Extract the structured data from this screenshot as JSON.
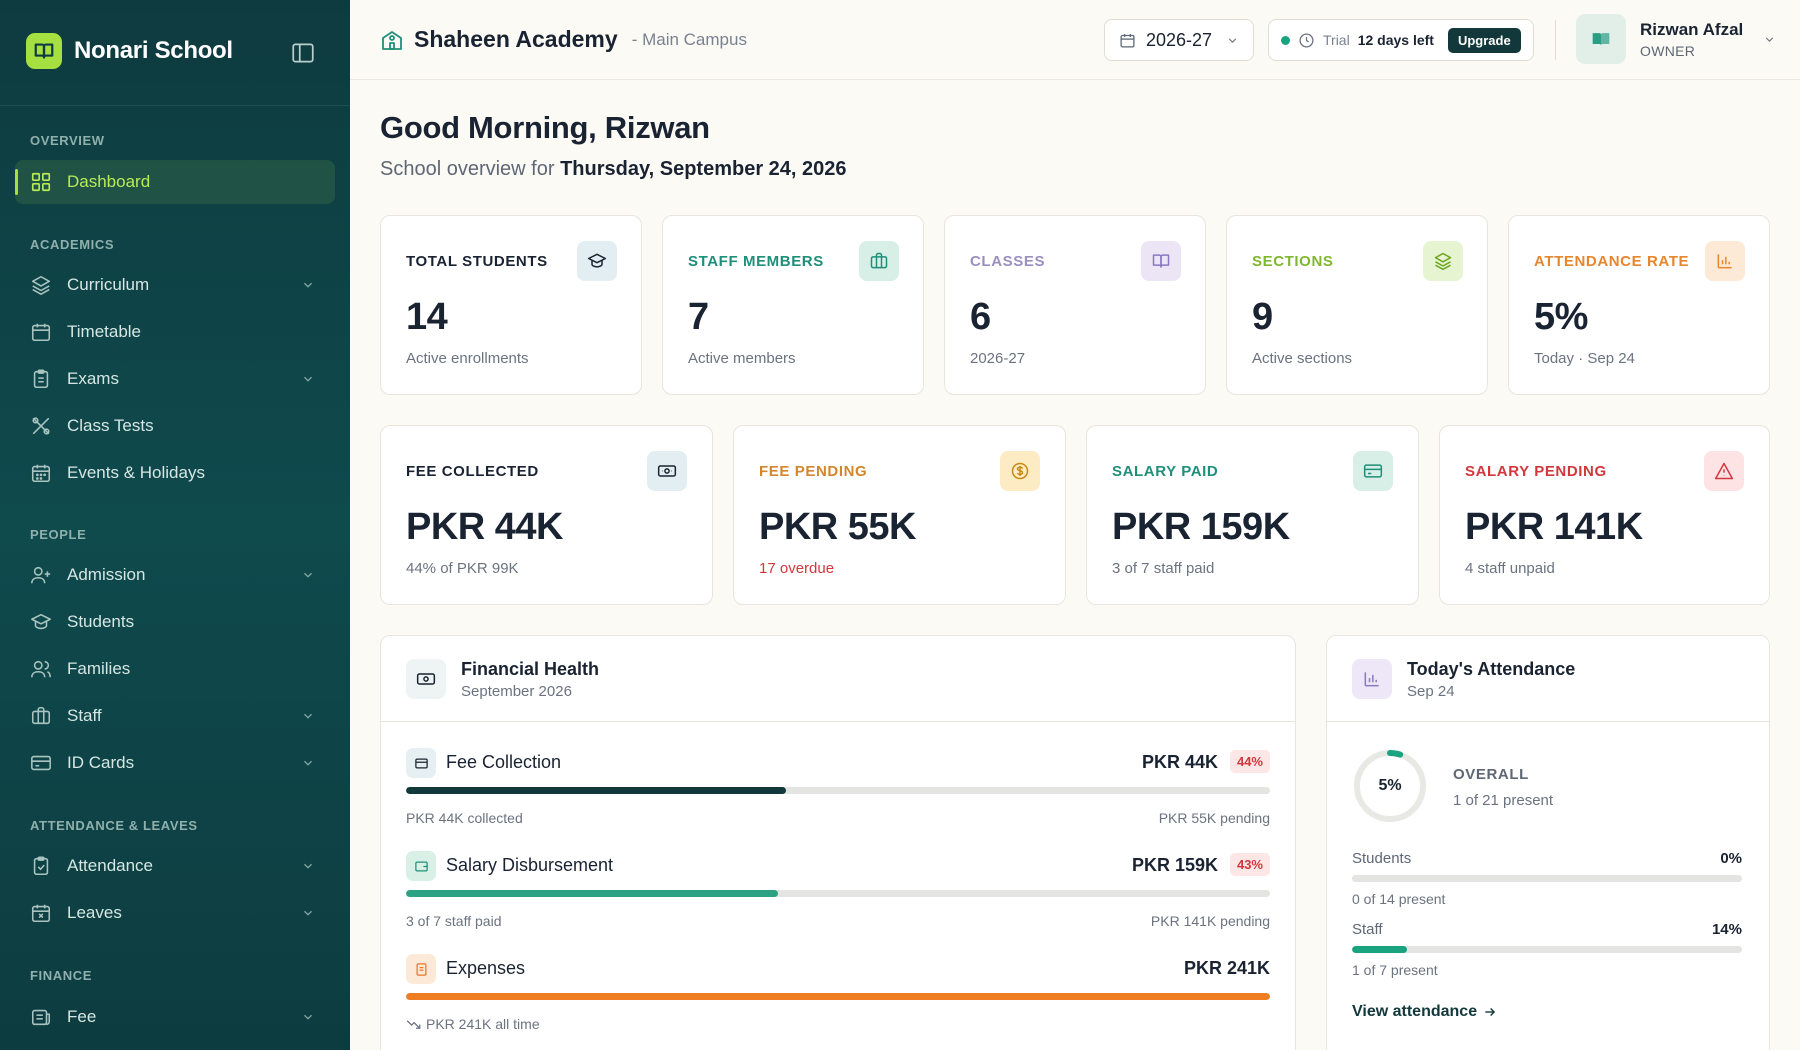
{
  "brand": {
    "name": "Nonari School"
  },
  "sidebar": {
    "sections": {
      "overview": "OVERVIEW",
      "academics": "ACADEMICS",
      "people": "PEOPLE",
      "attendance": "ATTENDANCE & LEAVES",
      "finance": "FINANCE"
    },
    "items": [
      {
        "label": "Dashboard",
        "icon": "grid-icon"
      },
      {
        "label": "Curriculum",
        "icon": "layers-icon"
      },
      {
        "label": "Timetable",
        "icon": "calendar-icon"
      },
      {
        "label": "Exams",
        "icon": "clipboard-icon"
      },
      {
        "label": "Class Tests",
        "icon": "tools-icon"
      },
      {
        "label": "Events & Holidays",
        "icon": "calendar-grid-icon"
      },
      {
        "label": "Admission",
        "icon": "user-plus-icon"
      },
      {
        "label": "Students",
        "icon": "graduation-cap-icon"
      },
      {
        "label": "Families",
        "icon": "users-icon"
      },
      {
        "label": "Staff",
        "icon": "briefcase-icon"
      },
      {
        "label": "ID Cards",
        "icon": "id-card-icon"
      },
      {
        "label": "Attendance",
        "icon": "clipboard-check-icon"
      },
      {
        "label": "Leaves",
        "icon": "calendar-x-icon"
      },
      {
        "label": "Fee",
        "icon": "receipt-icon"
      }
    ]
  },
  "header": {
    "school": "Shaheen Academy",
    "campus": "- Main Campus",
    "year": "2026-27",
    "trial_label": "Trial",
    "trial_days": "12 days left",
    "upgrade": "Upgrade",
    "user_name": "Rizwan Afzal",
    "user_role": "OWNER"
  },
  "greeting": {
    "title": "Good Morning, Rizwan",
    "subtitle_prefix": "School overview for",
    "date": "Thursday, September 24, 2026"
  },
  "stats": [
    {
      "label": "TOTAL STUDENTS",
      "value": "14",
      "note": "Active enrollments",
      "color": "#1a2332",
      "icon": "graduation-cap-icon"
    },
    {
      "label": "STAFF MEMBERS",
      "value": "7",
      "note": "Active members",
      "color": "#1f8f7a",
      "icon": "briefcase-icon"
    },
    {
      "label": "CLASSES",
      "value": "6",
      "note": "2026-27",
      "color": "#9a8fc0",
      "icon": "book-icon"
    },
    {
      "label": "SECTIONS",
      "value": "9",
      "note": "Active sections",
      "color": "#7fb82d",
      "icon": "layers-icon"
    },
    {
      "label": "ATTENDANCE RATE",
      "value": "5%",
      "note": "Today · Sep 24",
      "color": "#e8862d",
      "icon": "bar-chart-icon"
    }
  ],
  "finance_stats": [
    {
      "label": "FEE COLLECTED",
      "value": "PKR 44K",
      "note": "44% of PKR 99K",
      "color": "#1a2332",
      "note_color": "#6b7380",
      "icon": "cash-icon"
    },
    {
      "label": "FEE PENDING",
      "value": "PKR 55K",
      "note": "17 overdue",
      "color": "#d4862b",
      "note_color": "#d2373d",
      "icon": "dollar-coin-icon"
    },
    {
      "label": "SALARY PAID",
      "value": "PKR 159K",
      "note": "3 of 7 staff paid",
      "color": "#1f8f7a",
      "note_color": "#6b7380",
      "icon": "credit-card-icon"
    },
    {
      "label": "SALARY PENDING",
      "value": "PKR 141K",
      "note": "4 staff unpaid",
      "color": "#d2373d",
      "note_color": "#6b7380",
      "icon": "alert-triangle-icon"
    }
  ],
  "financial_health": {
    "title": "Financial Health",
    "subtitle": "September 2026",
    "rows": [
      {
        "title": "Fee Collection",
        "amount": "PKR 44K",
        "pct": "44%",
        "progress": 0.44,
        "left": "PKR 44K collected",
        "right": "PKR 55K pending",
        "bar_color": "#12383b",
        "icon": "card-icon"
      },
      {
        "title": "Salary Disbursement",
        "amount": "PKR 159K",
        "pct": "43%",
        "progress": 0.43,
        "left": "3 of 7 staff paid",
        "right": "PKR 141K pending",
        "bar_color": "#2aa283",
        "icon": "wallet-icon"
      },
      {
        "title": "Expenses",
        "amount": "PKR 241K",
        "progress": 1.0,
        "left": "PKR 241K all time",
        "bar_color": "#ef7d22",
        "icon": "receipt-icon"
      }
    ]
  },
  "attendance": {
    "title": "Today's Attendance",
    "subtitle": "Sep 24",
    "overall_pct": "5%",
    "overall_progress": 0.05,
    "overall_label": "OVERALL",
    "overall_sub": "1 of 21 present",
    "rows": [
      {
        "label": "Students",
        "pct": "0%",
        "progress": 0.0,
        "sub": "0 of 14 present"
      },
      {
        "label": "Staff",
        "pct": "14%",
        "progress": 0.14,
        "sub": "1 of 7 present"
      }
    ],
    "link": "View attendance"
  }
}
